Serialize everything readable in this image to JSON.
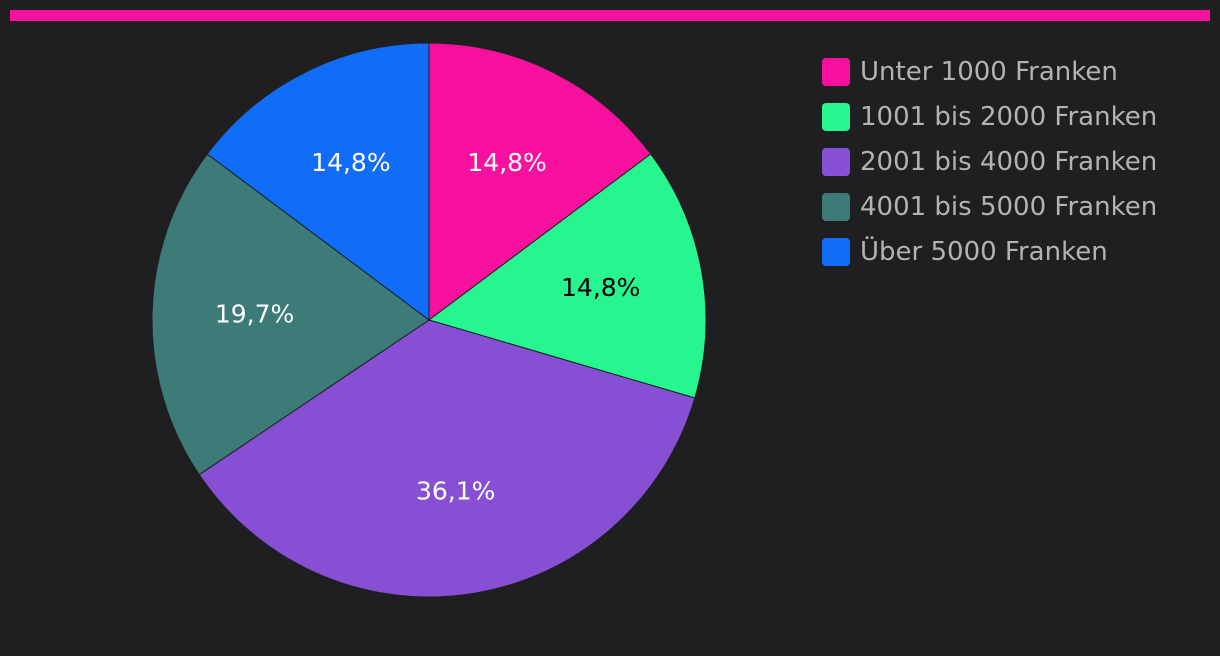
{
  "accent_color": "#f7119e",
  "chart_data": {
    "type": "pie",
    "title": "",
    "start_angle_deg": 0,
    "direction": "clockwise",
    "legend_position": "top-right",
    "slices": [
      {
        "label": "Unter 1000 Franken",
        "value": 14.8,
        "display": "14,8%",
        "color": "#f7119e",
        "label_color": "#ffffff"
      },
      {
        "label": "1001 bis 2000 Franken",
        "value": 14.8,
        "display": "14,8%",
        "color": "#27f590",
        "label_color": "#000000"
      },
      {
        "label": "2001 bis 4000 Franken",
        "value": 36.1,
        "display": "36,1%",
        "color": "#8750d4",
        "label_color": "#ffffff"
      },
      {
        "label": "4001 bis 5000 Franken",
        "value": 19.7,
        "display": "19,7%",
        "color": "#3d7b79",
        "label_color": "#ffffff"
      },
      {
        "label": "Über 5000 Franken",
        "value": 14.8,
        "display": "14,8%",
        "color": "#116df7",
        "label_color": "#ffffff"
      }
    ]
  }
}
